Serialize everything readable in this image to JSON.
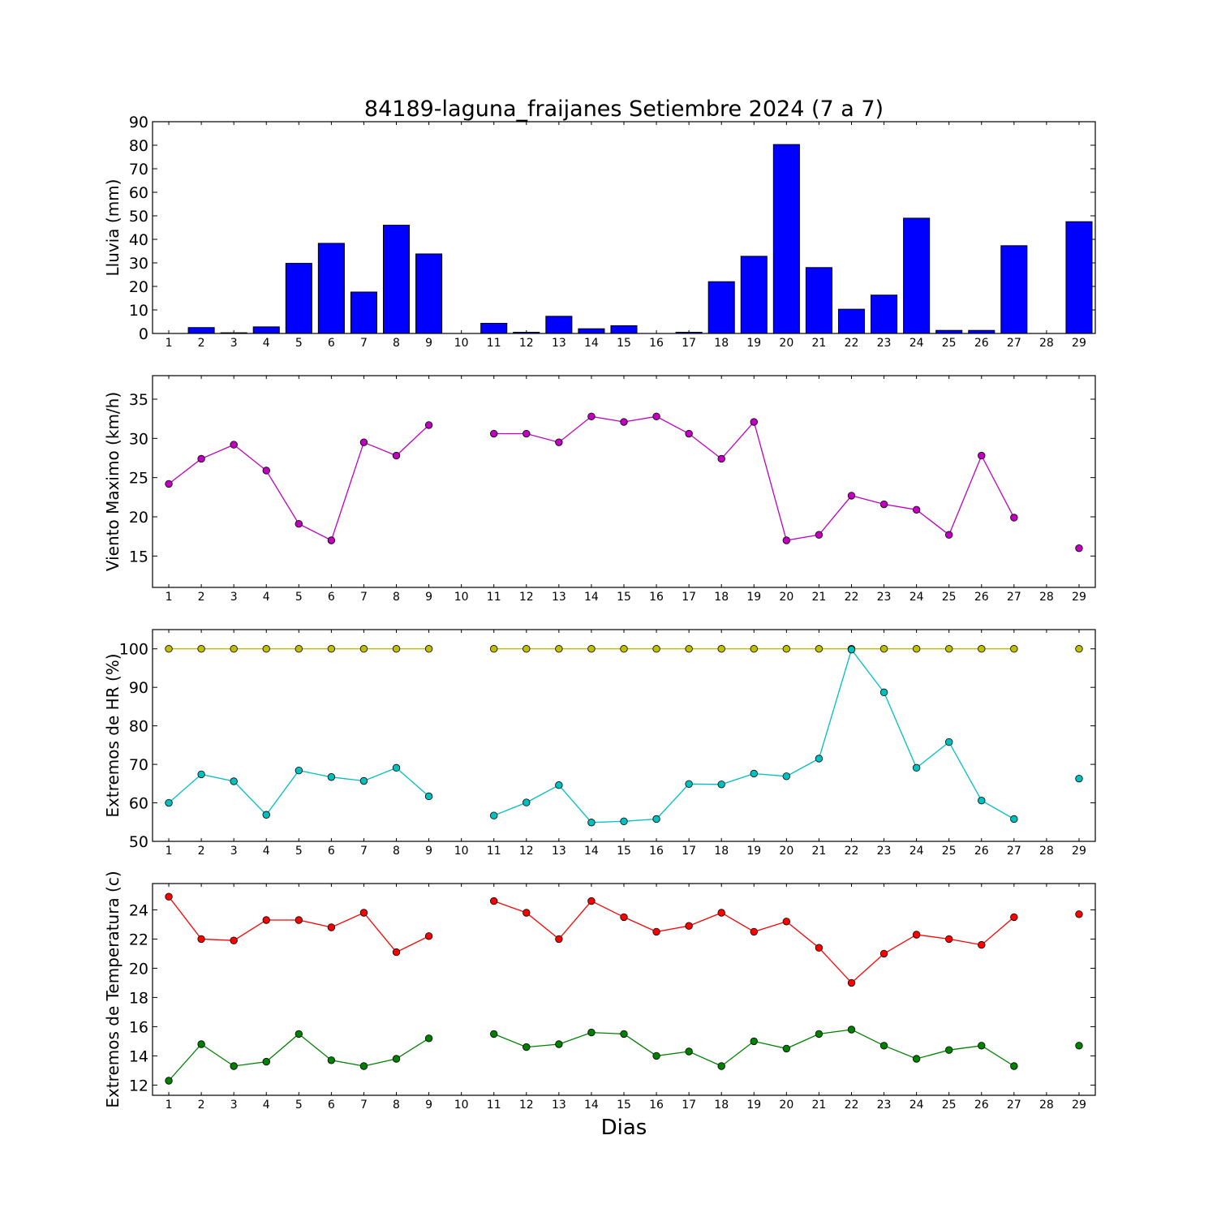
{
  "chart_data": [
    {
      "type": "bar",
      "title": "84189-laguna_fraijanes Setiembre 2024  (7 a 7)",
      "ylabel": "Lluvia (mm)",
      "xlabel": "",
      "ylim": [
        0,
        90
      ],
      "yticks": [
        0,
        10,
        20,
        30,
        40,
        50,
        60,
        70,
        80,
        90
      ],
      "categories": [
        "1",
        "2",
        "3",
        "4",
        "5",
        "6",
        "7",
        "8",
        "9",
        "10",
        "11",
        "12",
        "13",
        "14",
        "15",
        "16",
        "17",
        "18",
        "19",
        "20",
        "21",
        "22",
        "23",
        "24",
        "25",
        "26",
        "27",
        "28",
        "29"
      ],
      "series": [
        {
          "color": "#0000ff",
          "values": [
            0,
            2.5,
            0.3,
            2.8,
            29.8,
            38.3,
            17.6,
            46,
            33.8,
            null,
            4.3,
            0.5,
            7.3,
            2,
            3.3,
            null,
            0.5,
            22,
            32.8,
            80.3,
            28,
            10.3,
            16.3,
            49,
            1.3,
            1.3,
            37.3,
            null,
            47.5
          ]
        }
      ],
      "grid": false
    },
    {
      "type": "line",
      "title": "",
      "ylabel": "Viento Maximo (km/h)",
      "xlabel": "",
      "ylim": [
        11,
        38
      ],
      "yticks": [
        15,
        20,
        25,
        30,
        35
      ],
      "categories": [
        "1",
        "2",
        "3",
        "4",
        "5",
        "6",
        "7",
        "8",
        "9",
        "10",
        "11",
        "12",
        "13",
        "14",
        "15",
        "16",
        "17",
        "18",
        "19",
        "20",
        "21",
        "22",
        "23",
        "24",
        "25",
        "26",
        "27",
        "28",
        "29"
      ],
      "series": [
        {
          "color": "#bf00bf",
          "values": [
            24.2,
            27.4,
            29.2,
            25.9,
            19.1,
            17,
            29.5,
            27.8,
            31.7,
            null,
            30.6,
            30.6,
            29.5,
            32.8,
            32.1,
            32.8,
            30.6,
            27.4,
            32.1,
            17,
            17.7,
            22.7,
            21.6,
            20.9,
            17.7,
            27.8,
            19.9,
            null,
            16
          ]
        }
      ],
      "grid": false
    },
    {
      "type": "line",
      "title": "",
      "ylabel": "Extremos de HR (%)",
      "xlabel": "",
      "ylim": [
        50,
        105
      ],
      "yticks": [
        50,
        60,
        70,
        80,
        90,
        100
      ],
      "categories": [
        "1",
        "2",
        "3",
        "4",
        "5",
        "6",
        "7",
        "8",
        "9",
        "10",
        "11",
        "12",
        "13",
        "14",
        "15",
        "16",
        "17",
        "18",
        "19",
        "20",
        "21",
        "22",
        "23",
        "24",
        "25",
        "26",
        "27",
        "28",
        "29"
      ],
      "series": [
        {
          "color": "#bfbf00",
          "values": [
            100,
            100,
            100,
            100,
            100,
            100,
            100,
            100,
            100,
            null,
            100,
            100,
            100,
            100,
            100,
            100,
            100,
            100,
            100,
            100,
            100,
            100,
            100,
            100,
            100,
            100,
            100,
            null,
            100
          ]
        },
        {
          "color": "#00bfbf",
          "values": [
            60,
            67.4,
            65.6,
            56.9,
            68.4,
            66.7,
            65.7,
            69.1,
            61.7,
            null,
            56.7,
            60.1,
            64.6,
            54.9,
            55.2,
            55.8,
            64.9,
            64.8,
            67.6,
            66.9,
            71.5,
            99.8,
            88.7,
            69.1,
            75.8,
            60.6,
            55.8,
            null,
            66.3
          ]
        }
      ],
      "grid": false
    },
    {
      "type": "line",
      "title": "",
      "ylabel": "Extremos de Temperatura (c)",
      "xlabel": "Dias",
      "ylim": [
        11.3,
        25.8
      ],
      "yticks": [
        12,
        14,
        16,
        18,
        20,
        22,
        24
      ],
      "categories": [
        "1",
        "2",
        "3",
        "4",
        "5",
        "6",
        "7",
        "8",
        "9",
        "10",
        "11",
        "12",
        "13",
        "14",
        "15",
        "16",
        "17",
        "18",
        "19",
        "20",
        "21",
        "22",
        "23",
        "24",
        "25",
        "26",
        "27",
        "28",
        "29"
      ],
      "series": [
        {
          "color": "#ff0000",
          "values": [
            24.9,
            22,
            21.9,
            23.3,
            23.3,
            22.8,
            23.8,
            21.1,
            22.2,
            null,
            24.6,
            23.8,
            22,
            24.6,
            23.5,
            22.5,
            22.9,
            23.8,
            22.5,
            23.2,
            21.4,
            19,
            21,
            22.3,
            22,
            21.6,
            23.5,
            null,
            23.7
          ]
        },
        {
          "color": "#008000",
          "values": [
            12.3,
            14.8,
            13.3,
            13.6,
            15.5,
            13.7,
            13.3,
            13.8,
            15.2,
            null,
            15.5,
            14.6,
            14.8,
            15.6,
            15.5,
            14,
            14.3,
            13.3,
            15,
            14.5,
            15.5,
            15.8,
            14.7,
            13.8,
            14.4,
            14.7,
            13.3,
            null,
            14.7
          ]
        }
      ],
      "grid": false
    }
  ]
}
